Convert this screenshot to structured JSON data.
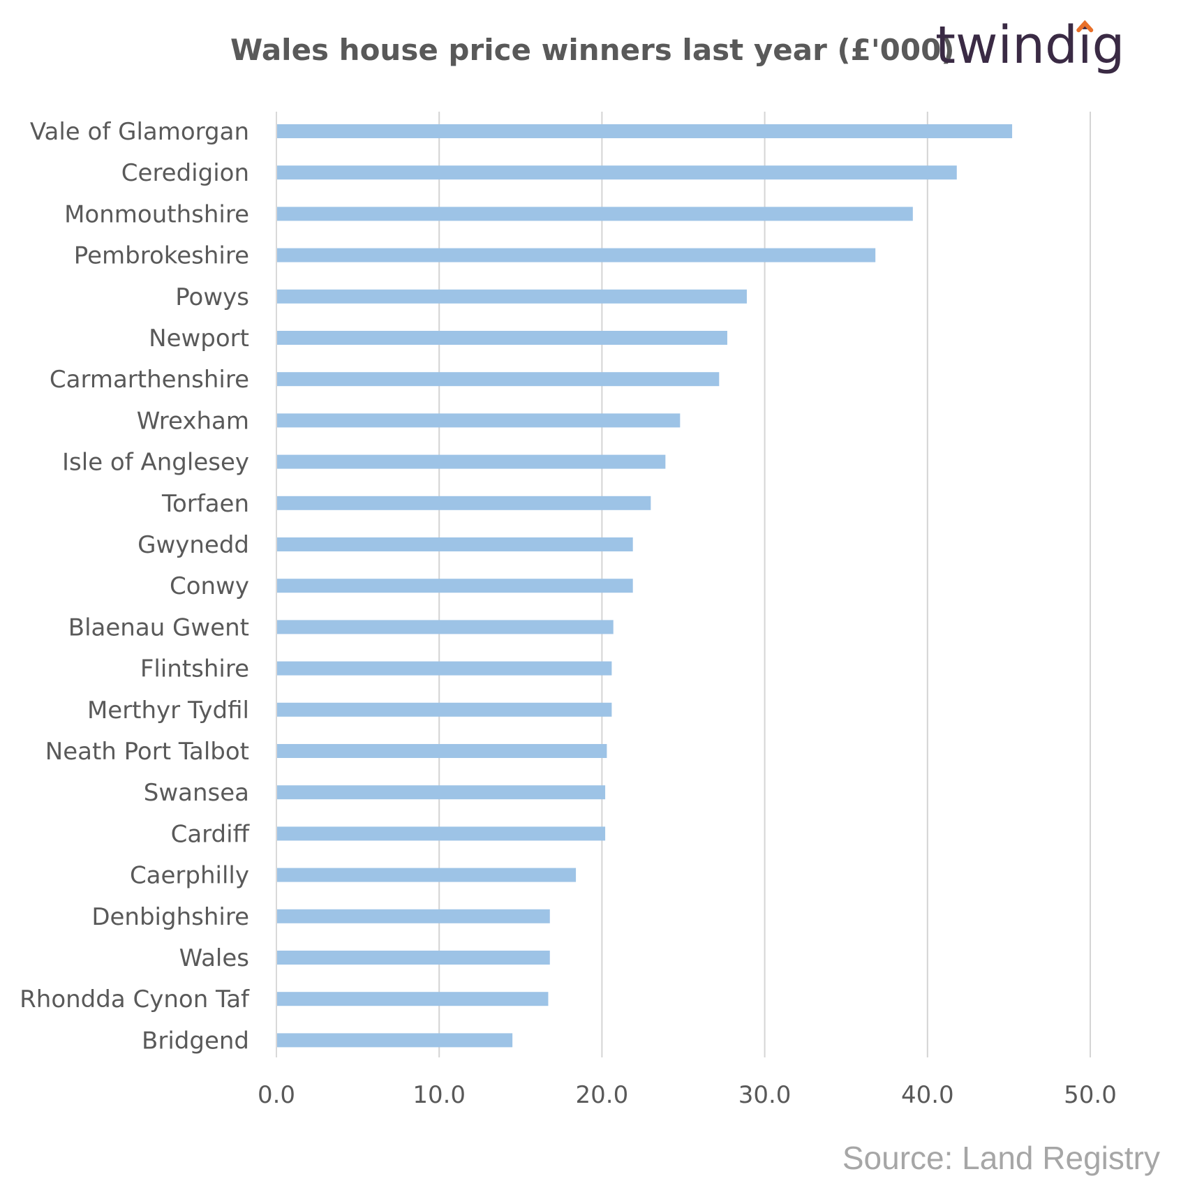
{
  "chart_data": {
    "type": "bar",
    "orientation": "horizontal",
    "title": "Wales house price winners last year (£'000)",
    "categories": [
      "Vale of Glamorgan",
      "Ceredigion",
      "Monmouthshire",
      "Pembrokeshire",
      "Powys",
      "Newport",
      "Carmarthenshire",
      "Wrexham",
      "Isle of Anglesey",
      "Torfaen",
      "Gwynedd",
      "Conwy",
      "Blaenau Gwent",
      "Flintshire",
      "Merthyr Tydfil",
      "Neath Port Talbot",
      "Swansea",
      "Cardiff",
      "Caerphilly",
      "Denbighshire",
      "Wales",
      "Rhondda Cynon Taf",
      "Bridgend"
    ],
    "values": [
      45.2,
      41.8,
      39.1,
      36.8,
      28.9,
      27.7,
      27.2,
      24.8,
      23.9,
      23.0,
      21.9,
      21.9,
      20.7,
      20.6,
      20.6,
      20.3,
      20.2,
      20.2,
      18.4,
      16.8,
      16.8,
      16.7,
      14.5
    ],
    "xlim": [
      0,
      50
    ],
    "x_ticks": [
      "0.0",
      "10.0",
      "20.0",
      "30.0",
      "40.0",
      "50.0"
    ],
    "grid": "vertical",
    "bar_color": "#9dc3e6",
    "source": "Source: Land Registry",
    "logo": "twindig",
    "logo_accent_color": "#e8702a"
  }
}
